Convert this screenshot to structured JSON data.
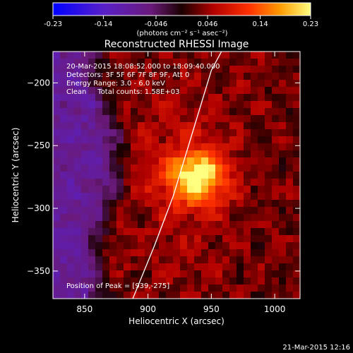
{
  "chart_data": {
    "type": "heatmap",
    "title": "Reconstructed RHESSI Image",
    "xlabel": "Heliocentric X (arcsec)",
    "ylabel": "Heliocentric Y (arcsec)",
    "xlim": [
      825,
      1020
    ],
    "ylim": [
      -372,
      -175
    ],
    "x_ticks": [
      850,
      900,
      950,
      1000
    ],
    "y_ticks": [
      -200,
      -250,
      -300,
      -350
    ],
    "colorbar": {
      "range": [
        -0.23,
        0.23
      ],
      "ticks": [
        "-0.23",
        "-0.14",
        "-0.046",
        "0.046",
        "0.14",
        "0.23"
      ],
      "unit_label": "(photons cm⁻² s⁻¹ asec⁻²)"
    },
    "annotations": [
      "20-Mar-2015 18:08:52.000 to 18:09:40.000",
      "Detectors: 3F 5F 6F 7F 8F 9F, Att 0",
      "Energy Range: 3.0 - 6.0 keV",
      "Clean     Total counts: 1.58E+03"
    ],
    "peak_label": "Position of Peak = [939,-275]",
    "peak": [
      939,
      -275
    ],
    "timestamp": "21-Mar-2015 12:16",
    "limb_curve": [
      [
        888,
        -372
      ],
      [
        905,
        -330
      ],
      [
        920,
        -290
      ],
      [
        935,
        -240
      ],
      [
        950,
        -190
      ],
      [
        958,
        -175
      ]
    ]
  }
}
